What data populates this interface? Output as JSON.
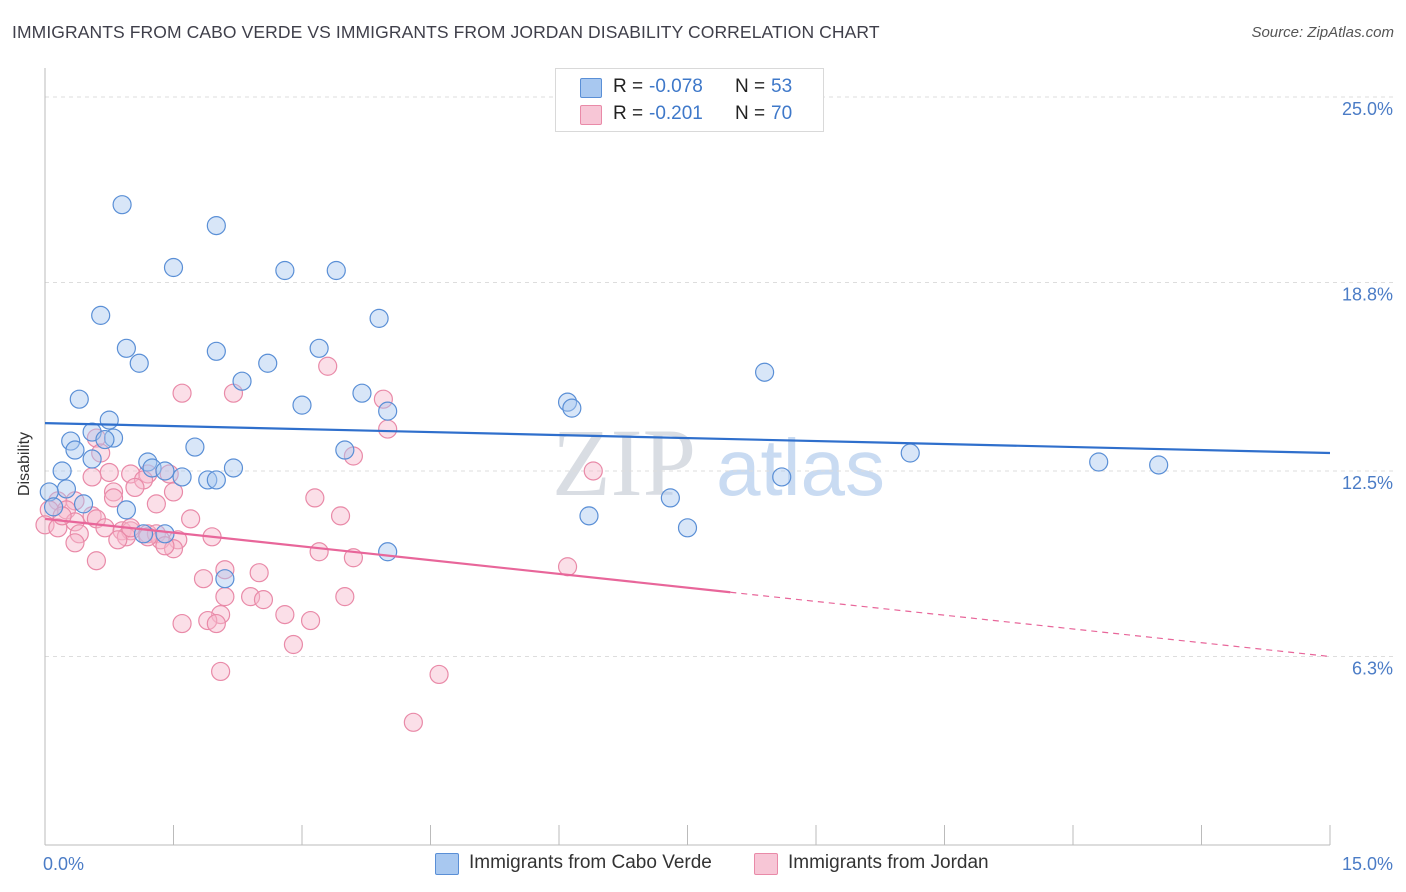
{
  "title": "IMMIGRANTS FROM CABO VERDE VS IMMIGRANTS FROM JORDAN DISABILITY CORRELATION CHART",
  "source": "Source: ZipAtlas.com",
  "watermark": {
    "zip": "ZIP",
    "atlas": "atlas"
  },
  "colors": {
    "blue_fill": "#a8c8f0",
    "blue_stroke": "#5a8fd6",
    "blue_line": "#2f6fcc",
    "pink_fill": "#f7b8cc",
    "pink_stroke": "#e98aa8",
    "pink_line": "#e8669a",
    "tick_text": "#4b7cc6",
    "grid": "#dddddd"
  },
  "legend": {
    "rows": [
      {
        "r_label": "R =",
        "r_value": "-0.078",
        "n_label": "N =",
        "n_value": "53"
      },
      {
        "r_label": "R =",
        "r_value": "-0.201",
        "n_label": "N =",
        "n_value": "70"
      }
    ]
  },
  "bottom_legend": [
    "Immigrants from Cabo Verde",
    "Immigrants from Jordan"
  ],
  "chart_data": {
    "type": "scatter",
    "title": "IMMIGRANTS FROM CABO VERDE VS IMMIGRANTS FROM JORDAN DISABILITY CORRELATION CHART",
    "xlabel": "",
    "ylabel": "Disability",
    "xlim": [
      0,
      15
    ],
    "ylim": [
      0,
      25.6
    ],
    "x_tick_labels": [
      "0.0%",
      "15.0%"
    ],
    "y_ticks": [
      {
        "value": 25.0,
        "label": "25.0%"
      },
      {
        "value": 18.8,
        "label": "18.8%"
      },
      {
        "value": 12.5,
        "label": "12.5%"
      },
      {
        "value": 6.3,
        "label": "6.3%"
      }
    ],
    "series": [
      {
        "name": "Immigrants from Cabo Verde",
        "color": "blue",
        "trend": {
          "x0": 0,
          "y0": 14.1,
          "x1": 15,
          "y1": 13.1,
          "dashed_from": null
        },
        "points": [
          [
            0.9,
            21.4
          ],
          [
            2.0,
            20.7
          ],
          [
            1.5,
            19.3
          ],
          [
            2.8,
            19.2
          ],
          [
            3.4,
            19.2
          ],
          [
            0.65,
            17.7
          ],
          [
            3.9,
            17.6
          ],
          [
            0.95,
            16.6
          ],
          [
            2.0,
            16.5
          ],
          [
            3.2,
            16.6
          ],
          [
            1.1,
            16.1
          ],
          [
            2.6,
            16.1
          ],
          [
            2.3,
            15.5
          ],
          [
            8.4,
            15.8
          ],
          [
            0.4,
            14.9
          ],
          [
            3.7,
            15.1
          ],
          [
            6.1,
            14.8
          ],
          [
            3.0,
            14.7
          ],
          [
            6.15,
            14.6
          ],
          [
            4.0,
            14.5
          ],
          [
            0.75,
            14.2
          ],
          [
            0.55,
            13.8
          ],
          [
            0.8,
            13.6
          ],
          [
            0.7,
            13.55
          ],
          [
            0.3,
            13.5
          ],
          [
            1.75,
            13.3
          ],
          [
            0.35,
            13.2
          ],
          [
            3.5,
            13.2
          ],
          [
            10.1,
            13.1
          ],
          [
            0.55,
            12.9
          ],
          [
            1.2,
            12.8
          ],
          [
            12.3,
            12.8
          ],
          [
            13.0,
            12.7
          ],
          [
            1.25,
            12.6
          ],
          [
            2.2,
            12.6
          ],
          [
            0.2,
            12.5
          ],
          [
            1.4,
            12.5
          ],
          [
            1.6,
            12.3
          ],
          [
            1.9,
            12.2
          ],
          [
            2.0,
            12.2
          ],
          [
            8.6,
            12.3
          ],
          [
            0.25,
            11.9
          ],
          [
            0.05,
            11.8
          ],
          [
            0.45,
            11.4
          ],
          [
            7.3,
            11.6
          ],
          [
            0.1,
            11.3
          ],
          [
            0.95,
            11.2
          ],
          [
            6.35,
            11.0
          ],
          [
            7.5,
            10.6
          ],
          [
            1.15,
            10.4
          ],
          [
            1.4,
            10.4
          ],
          [
            4.0,
            9.8
          ],
          [
            2.1,
            8.9
          ]
        ]
      },
      {
        "name": "Immigrants from Jordan",
        "color": "pink",
        "trend": {
          "x0": 0,
          "y0": 10.9,
          "x1": 15,
          "y1": 6.3,
          "dashed_from": 8.0
        },
        "points": [
          [
            3.3,
            16.0
          ],
          [
            1.6,
            15.1
          ],
          [
            2.2,
            15.1
          ],
          [
            3.95,
            14.9
          ],
          [
            4.0,
            13.9
          ],
          [
            0.6,
            13.6
          ],
          [
            0.65,
            13.1
          ],
          [
            3.6,
            13.0
          ],
          [
            6.4,
            12.5
          ],
          [
            0.75,
            12.45
          ],
          [
            1.0,
            12.4
          ],
          [
            1.2,
            12.4
          ],
          [
            1.45,
            12.4
          ],
          [
            0.55,
            12.3
          ],
          [
            1.15,
            12.2
          ],
          [
            1.05,
            11.95
          ],
          [
            0.8,
            11.8
          ],
          [
            1.5,
            11.8
          ],
          [
            0.15,
            11.5
          ],
          [
            0.35,
            11.5
          ],
          [
            0.8,
            11.6
          ],
          [
            3.15,
            11.6
          ],
          [
            1.3,
            11.4
          ],
          [
            0.05,
            11.2
          ],
          [
            0.25,
            11.2
          ],
          [
            0.55,
            11.0
          ],
          [
            0.6,
            10.9
          ],
          [
            0.35,
            10.8
          ],
          [
            1.7,
            10.9
          ],
          [
            3.45,
            11.0
          ],
          [
            0.0,
            10.7
          ],
          [
            0.15,
            10.6
          ],
          [
            0.7,
            10.6
          ],
          [
            0.9,
            10.5
          ],
          [
            1.0,
            10.5
          ],
          [
            1.2,
            10.4
          ],
          [
            1.3,
            10.4
          ],
          [
            0.4,
            10.4
          ],
          [
            0.95,
            10.3
          ],
          [
            1.35,
            10.2
          ],
          [
            1.55,
            10.2
          ],
          [
            1.95,
            10.3
          ],
          [
            0.85,
            10.2
          ],
          [
            0.35,
            10.1
          ],
          [
            1.5,
            9.9
          ],
          [
            1.4,
            10.0
          ],
          [
            3.2,
            9.8
          ],
          [
            3.6,
            9.6
          ],
          [
            0.6,
            9.5
          ],
          [
            6.1,
            9.3
          ],
          [
            2.1,
            9.2
          ],
          [
            2.5,
            9.1
          ],
          [
            1.85,
            8.9
          ],
          [
            2.1,
            8.3
          ],
          [
            2.4,
            8.3
          ],
          [
            2.55,
            8.2
          ],
          [
            3.5,
            8.3
          ],
          [
            2.05,
            7.7
          ],
          [
            2.8,
            7.7
          ],
          [
            1.9,
            7.5
          ],
          [
            3.1,
            7.5
          ],
          [
            1.6,
            7.4
          ],
          [
            2.0,
            7.4
          ],
          [
            2.9,
            6.7
          ],
          [
            2.05,
            5.8
          ],
          [
            4.6,
            5.7
          ],
          [
            4.3,
            4.1
          ],
          [
            1.0,
            10.6
          ],
          [
            1.2,
            10.3
          ],
          [
            0.2,
            11.0
          ]
        ]
      }
    ]
  }
}
